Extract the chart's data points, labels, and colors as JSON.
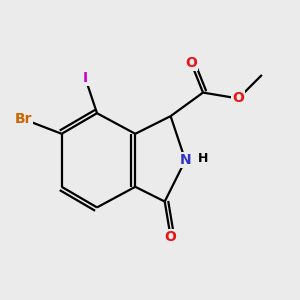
{
  "bg_color": "#ebebeb",
  "atom_colors": {
    "C": "#000000",
    "N": "#3333cc",
    "O": "#ee1111",
    "Br": "#cc6600",
    "I": "#cc00cc",
    "H": "#000000"
  },
  "bond_color": "#000000",
  "bond_lw": 1.6
}
